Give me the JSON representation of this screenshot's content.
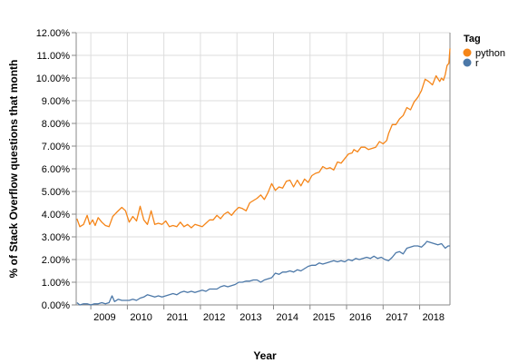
{
  "chart_data": {
    "type": "line",
    "xlabel": "Year",
    "ylabel": "% of Stack Overflow questions that month",
    "xlim": [
      2008.6,
      2018.83
    ],
    "ylim": [
      0,
      12
    ],
    "y_ticks": [
      "0.00%",
      "1.00%",
      "2.00%",
      "3.00%",
      "4.00%",
      "5.00%",
      "6.00%",
      "7.00%",
      "8.00%",
      "9.00%",
      "10.00%",
      "11.00%",
      "12.00%"
    ],
    "x_ticks": [
      "2009",
      "2010",
      "2011",
      "2012",
      "2013",
      "2014",
      "2015",
      "2016",
      "2017",
      "2018"
    ],
    "grid": true,
    "legend": {
      "title": "Tag",
      "placement": "right"
    },
    "series": [
      {
        "name": "python",
        "color": "#f58518",
        "points": [
          [
            2008.62,
            3.8
          ],
          [
            2008.7,
            3.45
          ],
          [
            2008.8,
            3.55
          ],
          [
            2008.9,
            3.95
          ],
          [
            2008.97,
            3.55
          ],
          [
            2009.05,
            3.75
          ],
          [
            2009.12,
            3.5
          ],
          [
            2009.2,
            3.85
          ],
          [
            2009.3,
            3.65
          ],
          [
            2009.4,
            3.5
          ],
          [
            2009.5,
            3.45
          ],
          [
            2009.6,
            3.9
          ],
          [
            2009.72,
            4.1
          ],
          [
            2009.85,
            4.3
          ],
          [
            2009.95,
            4.15
          ],
          [
            2010.05,
            3.65
          ],
          [
            2010.15,
            3.9
          ],
          [
            2010.25,
            3.7
          ],
          [
            2010.35,
            4.35
          ],
          [
            2010.45,
            3.75
          ],
          [
            2010.55,
            3.55
          ],
          [
            2010.65,
            4.15
          ],
          [
            2010.75,
            3.55
          ],
          [
            2010.85,
            3.6
          ],
          [
            2010.95,
            3.55
          ],
          [
            2011.05,
            3.7
          ],
          [
            2011.15,
            3.45
          ],
          [
            2011.25,
            3.5
          ],
          [
            2011.35,
            3.45
          ],
          [
            2011.45,
            3.65
          ],
          [
            2011.55,
            3.45
          ],
          [
            2011.65,
            3.55
          ],
          [
            2011.75,
            3.4
          ],
          [
            2011.85,
            3.55
          ],
          [
            2011.95,
            3.5
          ],
          [
            2012.05,
            3.45
          ],
          [
            2012.15,
            3.6
          ],
          [
            2012.25,
            3.75
          ],
          [
            2012.35,
            3.75
          ],
          [
            2012.45,
            3.95
          ],
          [
            2012.55,
            3.8
          ],
          [
            2012.65,
            4.0
          ],
          [
            2012.75,
            4.1
          ],
          [
            2012.85,
            3.95
          ],
          [
            2012.95,
            4.15
          ],
          [
            2013.05,
            4.3
          ],
          [
            2013.15,
            4.25
          ],
          [
            2013.25,
            4.15
          ],
          [
            2013.35,
            4.5
          ],
          [
            2013.45,
            4.6
          ],
          [
            2013.55,
            4.7
          ],
          [
            2013.65,
            4.85
          ],
          [
            2013.75,
            4.65
          ],
          [
            2013.85,
            4.95
          ],
          [
            2013.95,
            5.35
          ],
          [
            2014.05,
            5.05
          ],
          [
            2014.15,
            5.2
          ],
          [
            2014.25,
            5.15
          ],
          [
            2014.35,
            5.45
          ],
          [
            2014.45,
            5.5
          ],
          [
            2014.55,
            5.2
          ],
          [
            2014.65,
            5.5
          ],
          [
            2014.75,
            5.25
          ],
          [
            2014.85,
            5.55
          ],
          [
            2014.95,
            5.4
          ],
          [
            2015.05,
            5.7
          ],
          [
            2015.15,
            5.8
          ],
          [
            2015.25,
            5.85
          ],
          [
            2015.35,
            6.1
          ],
          [
            2015.45,
            6.0
          ],
          [
            2015.55,
            6.05
          ],
          [
            2015.65,
            5.95
          ],
          [
            2015.75,
            6.3
          ],
          [
            2015.85,
            6.25
          ],
          [
            2015.95,
            6.45
          ],
          [
            2016.05,
            6.65
          ],
          [
            2016.15,
            6.7
          ],
          [
            2016.2,
            6.85
          ],
          [
            2016.3,
            6.75
          ],
          [
            2016.4,
            6.95
          ],
          [
            2016.5,
            6.95
          ],
          [
            2016.6,
            6.85
          ],
          [
            2016.7,
            6.9
          ],
          [
            2016.8,
            6.95
          ],
          [
            2016.9,
            7.2
          ],
          [
            2017.0,
            7.1
          ],
          [
            2017.1,
            7.25
          ],
          [
            2017.15,
            7.55
          ],
          [
            2017.25,
            7.95
          ],
          [
            2017.35,
            7.95
          ],
          [
            2017.45,
            8.2
          ],
          [
            2017.55,
            8.35
          ],
          [
            2017.65,
            8.7
          ],
          [
            2017.75,
            8.6
          ],
          [
            2017.85,
            8.95
          ],
          [
            2017.95,
            9.15
          ],
          [
            2018.05,
            9.45
          ],
          [
            2018.15,
            9.95
          ],
          [
            2018.25,
            9.85
          ],
          [
            2018.35,
            9.7
          ],
          [
            2018.45,
            10.1
          ],
          [
            2018.55,
            9.85
          ],
          [
            2018.6,
            10.0
          ],
          [
            2018.65,
            9.9
          ],
          [
            2018.7,
            10.15
          ],
          [
            2018.75,
            10.55
          ],
          [
            2018.8,
            10.65
          ],
          [
            2018.83,
            11.3
          ]
        ]
      },
      {
        "name": "r",
        "color": "#4c78a8",
        "points": [
          [
            2008.62,
            0.1
          ],
          [
            2008.7,
            0.0
          ],
          [
            2008.8,
            0.05
          ],
          [
            2008.9,
            0.05
          ],
          [
            2009.0,
            0.0
          ],
          [
            2009.1,
            0.05
          ],
          [
            2009.2,
            0.05
          ],
          [
            2009.3,
            0.1
          ],
          [
            2009.4,
            0.05
          ],
          [
            2009.5,
            0.1
          ],
          [
            2009.58,
            0.4
          ],
          [
            2009.65,
            0.15
          ],
          [
            2009.75,
            0.25
          ],
          [
            2009.85,
            0.2
          ],
          [
            2009.95,
            0.2
          ],
          [
            2010.05,
            0.2
          ],
          [
            2010.15,
            0.25
          ],
          [
            2010.25,
            0.2
          ],
          [
            2010.35,
            0.3
          ],
          [
            2010.45,
            0.35
          ],
          [
            2010.55,
            0.45
          ],
          [
            2010.65,
            0.4
          ],
          [
            2010.75,
            0.35
          ],
          [
            2010.85,
            0.4
          ],
          [
            2010.95,
            0.35
          ],
          [
            2011.05,
            0.4
          ],
          [
            2011.15,
            0.45
          ],
          [
            2011.25,
            0.5
          ],
          [
            2011.35,
            0.45
          ],
          [
            2011.45,
            0.55
          ],
          [
            2011.55,
            0.6
          ],
          [
            2011.65,
            0.55
          ],
          [
            2011.75,
            0.6
          ],
          [
            2011.85,
            0.55
          ],
          [
            2011.95,
            0.6
          ],
          [
            2012.05,
            0.65
          ],
          [
            2012.15,
            0.6
          ],
          [
            2012.25,
            0.7
          ],
          [
            2012.35,
            0.7
          ],
          [
            2012.45,
            0.7
          ],
          [
            2012.55,
            0.8
          ],
          [
            2012.65,
            0.85
          ],
          [
            2012.75,
            0.8
          ],
          [
            2012.85,
            0.85
          ],
          [
            2012.95,
            0.9
          ],
          [
            2013.05,
            1.0
          ],
          [
            2013.15,
            1.0
          ],
          [
            2013.25,
            1.05
          ],
          [
            2013.35,
            1.05
          ],
          [
            2013.45,
            1.1
          ],
          [
            2013.55,
            1.1
          ],
          [
            2013.65,
            1.0
          ],
          [
            2013.75,
            1.1
          ],
          [
            2013.85,
            1.15
          ],
          [
            2013.95,
            1.2
          ],
          [
            2014.05,
            1.4
          ],
          [
            2014.15,
            1.35
          ],
          [
            2014.25,
            1.45
          ],
          [
            2014.35,
            1.45
          ],
          [
            2014.45,
            1.5
          ],
          [
            2014.55,
            1.45
          ],
          [
            2014.65,
            1.55
          ],
          [
            2014.75,
            1.5
          ],
          [
            2014.85,
            1.6
          ],
          [
            2014.95,
            1.7
          ],
          [
            2015.05,
            1.75
          ],
          [
            2015.15,
            1.75
          ],
          [
            2015.25,
            1.85
          ],
          [
            2015.35,
            1.8
          ],
          [
            2015.45,
            1.85
          ],
          [
            2015.55,
            1.9
          ],
          [
            2015.65,
            1.95
          ],
          [
            2015.75,
            1.9
          ],
          [
            2015.85,
            1.95
          ],
          [
            2015.95,
            1.9
          ],
          [
            2016.05,
            2.0
          ],
          [
            2016.15,
            1.95
          ],
          [
            2016.25,
            2.05
          ],
          [
            2016.35,
            2.0
          ],
          [
            2016.45,
            2.05
          ],
          [
            2016.55,
            2.1
          ],
          [
            2016.65,
            2.05
          ],
          [
            2016.75,
            2.15
          ],
          [
            2016.85,
            2.05
          ],
          [
            2016.95,
            2.1
          ],
          [
            2017.05,
            2.0
          ],
          [
            2017.15,
            1.95
          ],
          [
            2017.25,
            2.1
          ],
          [
            2017.35,
            2.3
          ],
          [
            2017.45,
            2.35
          ],
          [
            2017.55,
            2.25
          ],
          [
            2017.65,
            2.5
          ],
          [
            2017.75,
            2.55
          ],
          [
            2017.85,
            2.6
          ],
          [
            2017.95,
            2.6
          ],
          [
            2018.05,
            2.55
          ],
          [
            2018.15,
            2.7
          ],
          [
            2018.2,
            2.8
          ],
          [
            2018.3,
            2.75
          ],
          [
            2018.4,
            2.7
          ],
          [
            2018.5,
            2.65
          ],
          [
            2018.6,
            2.7
          ],
          [
            2018.7,
            2.5
          ],
          [
            2018.78,
            2.6
          ],
          [
            2018.83,
            2.6
          ]
        ]
      }
    ]
  }
}
